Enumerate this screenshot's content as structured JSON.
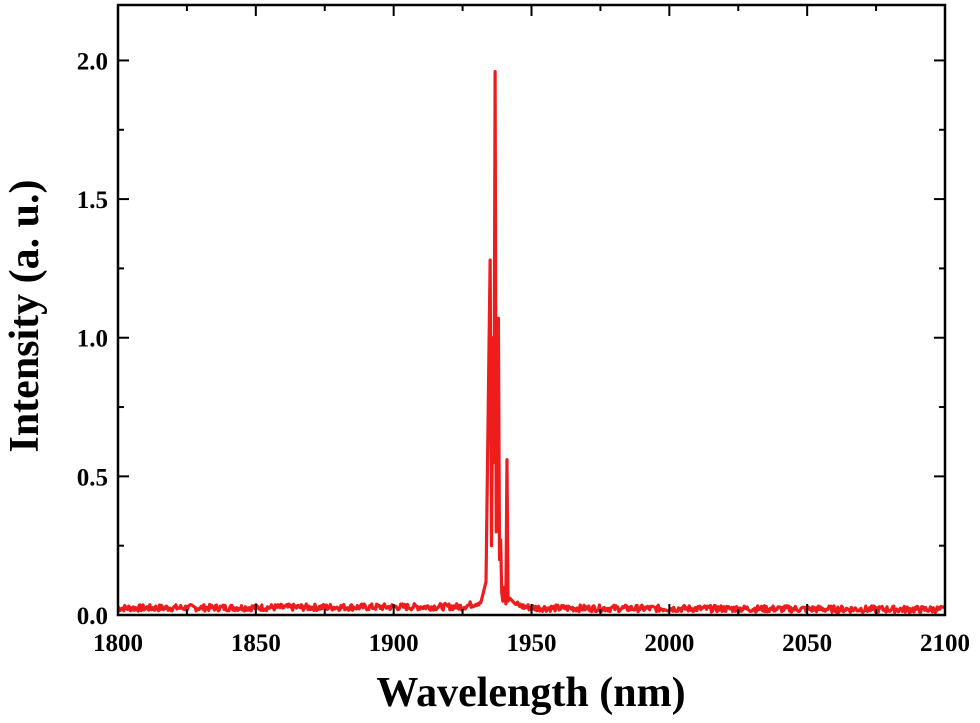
{
  "chart_data": {
    "type": "line",
    "title": "",
    "xlabel": "Wavelength (nm)",
    "ylabel": "Intensity (a. u.)",
    "xlim": [
      1800,
      2100
    ],
    "ylim": [
      0.0,
      2.2
    ],
    "x_ticks": [
      1800,
      1850,
      1900,
      1950,
      2000,
      2050,
      2100
    ],
    "x_tick_labels": [
      "1800",
      "1850",
      "1900",
      "1950",
      "2000",
      "2050",
      "2100"
    ],
    "y_ticks": [
      0.0,
      0.5,
      1.0,
      1.5,
      2.0
    ],
    "y_tick_labels": [
      "0.0",
      "0.5",
      "1.0",
      "1.5",
      "2.0"
    ],
    "grid": false,
    "legend": "none",
    "series": [
      {
        "color": "#ee1c1c",
        "baseline": 0.025,
        "noise": 0.012,
        "x": [
          1800,
          1925,
          1929,
          1932,
          1933.5,
          1934.5,
          1935.0,
          1935.5,
          1936.0,
          1936.4,
          1936.8,
          1937.2,
          1937.6,
          1938.0,
          1938.4,
          1938.8,
          1939.2,
          1939.6,
          1940.2,
          1940.7,
          1941.1,
          1941.5,
          1942.2,
          1944,
          1947,
          1952,
          2100
        ],
        "y": [
          0.025,
          0.03,
          0.04,
          0.05,
          0.12,
          0.9,
          1.28,
          0.25,
          1.0,
          0.55,
          1.96,
          0.3,
          0.95,
          1.07,
          0.2,
          0.27,
          0.08,
          0.05,
          0.1,
          0.04,
          0.56,
          0.05,
          0.06,
          0.04,
          0.03,
          0.025,
          0.02
        ]
      }
    ]
  }
}
